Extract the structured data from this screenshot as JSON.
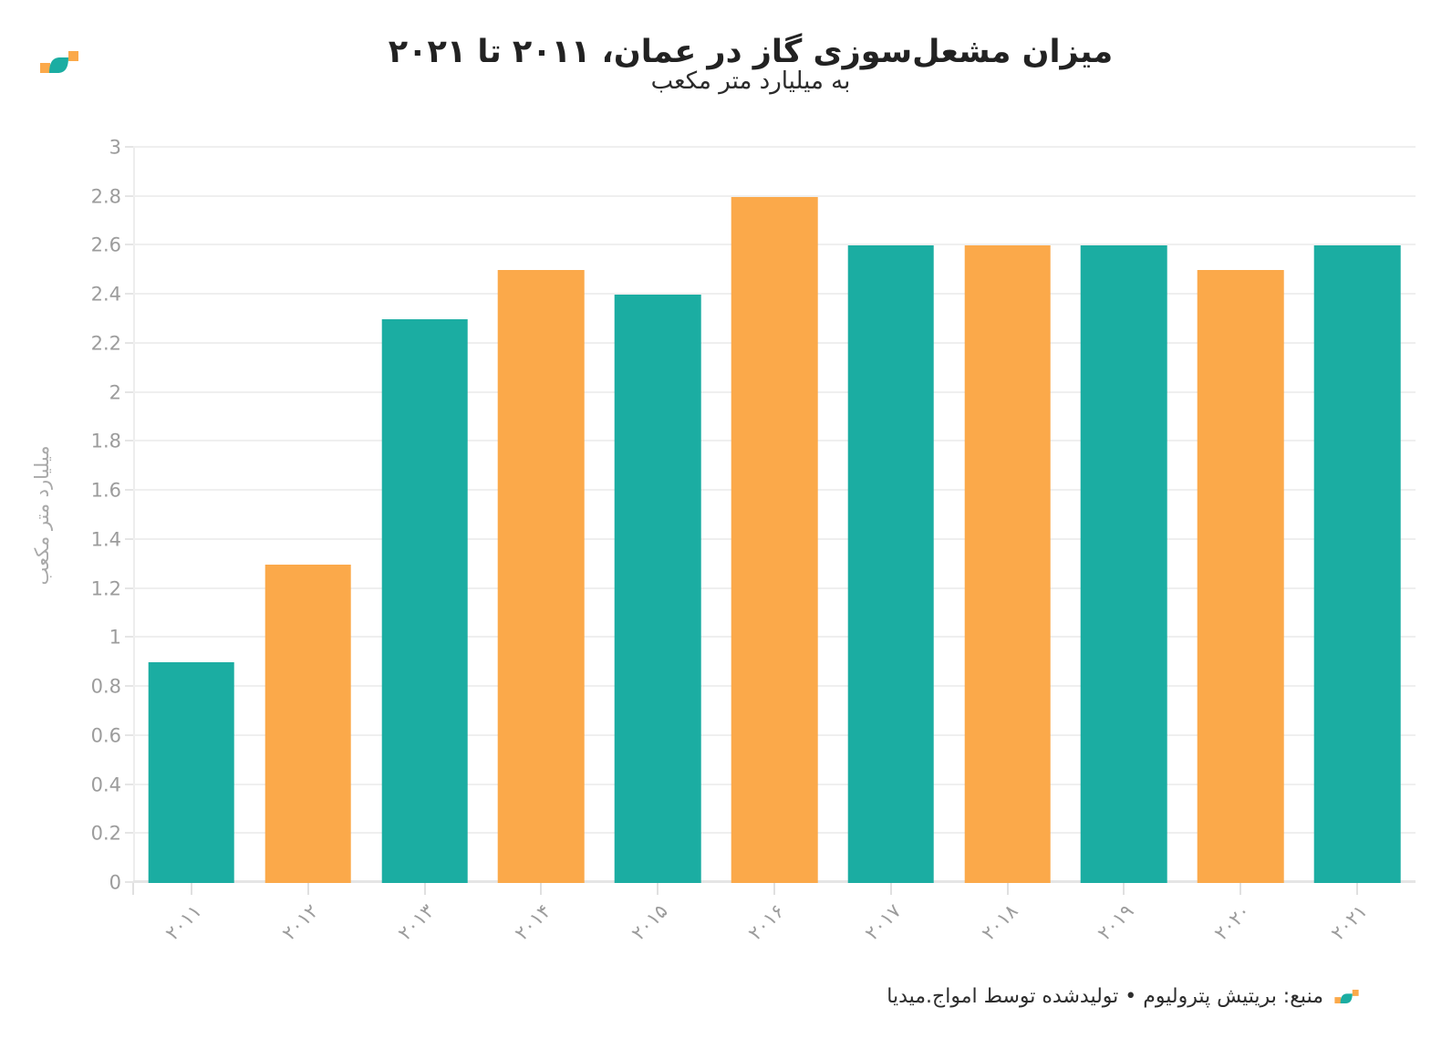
{
  "page": {
    "header_logo_icon": "amwaj-wave-icon",
    "footer": {
      "source_text": "منبع: بریتیش پترولیوم • تولیدشده توسط امواج.میدیا",
      "logo_icon": "amwaj-wave-icon"
    }
  },
  "colors": {
    "teal": "#1BADA2",
    "orange": "#FBA94A",
    "grid": "#EFEFEF",
    "baseline": "#E5E5E5",
    "axis_text": "#9C9C9C",
    "axis_title_text": "#A9A9A9",
    "title_text": "#222222"
  },
  "chart_data": {
    "type": "bar",
    "title": "میزان مشعل‌سوزی گاز در عمان، ۲۰۱۱ تا ۲۰۲۱",
    "subtitle": "به میلیارد متر مکعب",
    "xlabel": "",
    "ylabel": "میلیارد متر مکعب",
    "categories": [
      "۲۰۱۱",
      "۲۰۱۲",
      "۲۰۱۳",
      "۲۰۱۴",
      "۲۰۱۵",
      "۲۰۱۶",
      "۲۰۱۷",
      "۲۰۱۸",
      "۲۰۱۹",
      "۲۰۲۰",
      "۲۰۲۱"
    ],
    "categories_latin": [
      "2011",
      "2012",
      "2013",
      "2014",
      "2015",
      "2016",
      "2017",
      "2018",
      "2019",
      "2020",
      "2021"
    ],
    "values": [
      0.9,
      1.3,
      2.3,
      2.5,
      2.4,
      2.8,
      2.6,
      2.6,
      2.6,
      2.5,
      2.6
    ],
    "bar_color_keys": [
      "teal",
      "orange",
      "teal",
      "orange",
      "teal",
      "orange",
      "teal",
      "orange",
      "teal",
      "orange",
      "teal"
    ],
    "ylim": [
      0,
      3
    ],
    "yticks": [
      "0",
      "0.2",
      "0.4",
      "0.6",
      "0.8",
      "1",
      "1.2",
      "1.4",
      "1.6",
      "1.8",
      "2",
      "2.2",
      "2.4",
      "2.6",
      "2.8",
      "3"
    ],
    "grid": true,
    "legend": "none"
  }
}
